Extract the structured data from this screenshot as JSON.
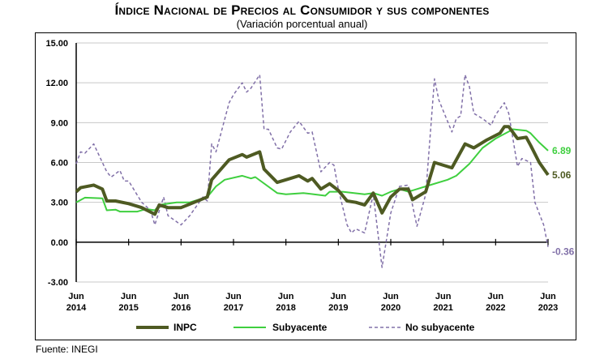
{
  "title": "Índice Nacional de Precios al Consumidor y sus componentes",
  "subtitle": "(Variación porcentual anual)",
  "source": "Fuente: INEGI",
  "chart_data": {
    "type": "line",
    "title": "Índice Nacional de Precios al Consumidor y sus componentes",
    "subtitle": "(Variación porcentual anual)",
    "ylim": [
      -3,
      15
    ],
    "yticks": [
      "15.00",
      "12.00",
      "9.00",
      "6.00",
      "3.00",
      "0.00",
      "-3.00"
    ],
    "ytick_values": [
      15,
      12,
      9,
      6,
      3,
      0,
      -3
    ],
    "xlim": [
      "2014-06",
      "2023-06"
    ],
    "xticks": [
      {
        "month": "Jun",
        "year": "2014",
        "x": "2014-06"
      },
      {
        "month": "Jun",
        "year": "2015",
        "x": "2015-06"
      },
      {
        "month": "Jun",
        "year": "2016",
        "x": "2016-06"
      },
      {
        "month": "Jun",
        "year": "2017",
        "x": "2017-06"
      },
      {
        "month": "Jun",
        "year": "2018",
        "x": "2018-06"
      },
      {
        "month": "Jun",
        "year": "2019",
        "x": "2019-06"
      },
      {
        "month": "Jun",
        "year": "2020",
        "x": "2020-06"
      },
      {
        "month": "Jun",
        "year": "2021",
        "x": "2021-06"
      },
      {
        "month": "Jun",
        "year": "2022",
        "x": "2022-06"
      },
      {
        "month": "Jun",
        "year": "2023",
        "x": "2023-06"
      }
    ],
    "grid": true,
    "legend_position": "bottom",
    "series": [
      {
        "name": "INPC",
        "color": "#4e5a22",
        "style": "solid-thick",
        "end_label": "5.06",
        "points": [
          [
            "2014-06",
            3.8
          ],
          [
            "2014-07",
            4.1
          ],
          [
            "2014-10",
            4.3
          ],
          [
            "2014-12",
            4.0
          ],
          [
            "2015-01",
            3.1
          ],
          [
            "2015-03",
            3.1
          ],
          [
            "2015-06",
            2.9
          ],
          [
            "2015-09",
            2.6
          ],
          [
            "2015-12",
            2.1
          ],
          [
            "2016-01",
            2.8
          ],
          [
            "2016-03",
            2.6
          ],
          [
            "2016-06",
            2.6
          ],
          [
            "2016-09",
            3.0
          ],
          [
            "2016-12",
            3.4
          ],
          [
            "2017-01",
            4.7
          ],
          [
            "2017-05",
            6.2
          ],
          [
            "2017-08",
            6.6
          ],
          [
            "2017-09",
            6.4
          ],
          [
            "2017-12",
            6.8
          ],
          [
            "2018-01",
            5.5
          ],
          [
            "2018-04",
            4.5
          ],
          [
            "2018-07",
            4.8
          ],
          [
            "2018-09",
            5.0
          ],
          [
            "2018-11",
            4.6
          ],
          [
            "2018-12",
            4.8
          ],
          [
            "2019-02",
            4.0
          ],
          [
            "2019-04",
            4.4
          ],
          [
            "2019-06",
            3.9
          ],
          [
            "2019-08",
            3.1
          ],
          [
            "2019-10",
            3.0
          ],
          [
            "2019-12",
            2.8
          ],
          [
            "2020-02",
            3.7
          ],
          [
            "2020-04",
            2.2
          ],
          [
            "2020-06",
            3.4
          ],
          [
            "2020-08",
            4.0
          ],
          [
            "2020-10",
            4.0
          ],
          [
            "2020-11",
            3.2
          ],
          [
            "2021-02",
            3.8
          ],
          [
            "2021-04",
            6.0
          ],
          [
            "2021-08",
            5.6
          ],
          [
            "2021-11",
            7.4
          ],
          [
            "2022-01",
            7.1
          ],
          [
            "2022-04",
            7.7
          ],
          [
            "2022-07",
            8.2
          ],
          [
            "2022-08",
            8.7
          ],
          [
            "2022-09",
            8.7
          ],
          [
            "2022-11",
            7.8
          ],
          [
            "2023-01",
            7.9
          ],
          [
            "2023-02",
            7.3
          ],
          [
            "2023-04",
            6.0
          ],
          [
            "2023-06",
            5.06
          ]
        ]
      },
      {
        "name": "Subyacente",
        "color": "#3fcf3f",
        "style": "solid",
        "end_label": "6.89",
        "points": [
          [
            "2014-06",
            3.0
          ],
          [
            "2014-08",
            3.35
          ],
          [
            "2014-12",
            3.3
          ],
          [
            "2015-01",
            2.4
          ],
          [
            "2015-03",
            2.45
          ],
          [
            "2015-04",
            2.3
          ],
          [
            "2015-08",
            2.3
          ],
          [
            "2015-10",
            2.5
          ],
          [
            "2015-12",
            2.4
          ],
          [
            "2016-01",
            2.8
          ],
          [
            "2016-05",
            3.0
          ],
          [
            "2016-08",
            3.0
          ],
          [
            "2016-12",
            3.4
          ],
          [
            "2017-02",
            4.2
          ],
          [
            "2017-04",
            4.7
          ],
          [
            "2017-08",
            5.0
          ],
          [
            "2017-10",
            4.8
          ],
          [
            "2017-11",
            4.9
          ],
          [
            "2018-04",
            3.7
          ],
          [
            "2018-06",
            3.6
          ],
          [
            "2018-10",
            3.7
          ],
          [
            "2019-03",
            3.5
          ],
          [
            "2019-04",
            3.8
          ],
          [
            "2019-07",
            3.8
          ],
          [
            "2019-12",
            3.6
          ],
          [
            "2020-02",
            3.7
          ],
          [
            "2020-04",
            3.5
          ],
          [
            "2020-06",
            3.8
          ],
          [
            "2020-08",
            4.0
          ],
          [
            "2020-10",
            3.8
          ],
          [
            "2021-02",
            4.2
          ],
          [
            "2021-07",
            4.7
          ],
          [
            "2021-09",
            5.0
          ],
          [
            "2021-12",
            5.9
          ],
          [
            "2022-03",
            7.1
          ],
          [
            "2022-06",
            7.8
          ],
          [
            "2022-10",
            8.5
          ],
          [
            "2023-01",
            8.4
          ],
          [
            "2023-02",
            8.2
          ],
          [
            "2023-04",
            7.5
          ],
          [
            "2023-06",
            6.89
          ]
        ]
      },
      {
        "name": "No subyacente",
        "color": "#8170a8",
        "style": "dashed",
        "end_label": "-0.36",
        "points": [
          [
            "2014-06",
            5.9
          ],
          [
            "2014-07",
            6.8
          ],
          [
            "2014-08",
            6.7
          ],
          [
            "2014-10",
            7.4
          ],
          [
            "2014-11",
            6.7
          ],
          [
            "2015-01",
            5.3
          ],
          [
            "2015-02",
            4.9
          ],
          [
            "2015-04",
            5.4
          ],
          [
            "2015-05",
            4.6
          ],
          [
            "2015-06",
            4.6
          ],
          [
            "2015-09",
            3.0
          ],
          [
            "2015-11",
            2.4
          ],
          [
            "2015-12",
            1.3
          ],
          [
            "2016-02",
            3.4
          ],
          [
            "2016-03",
            2.0
          ],
          [
            "2016-06",
            1.3
          ],
          [
            "2016-08",
            2.0
          ],
          [
            "2016-11",
            3.4
          ],
          [
            "2016-12",
            3.1
          ],
          [
            "2017-01",
            7.4
          ],
          [
            "2017-02",
            6.8
          ],
          [
            "2017-05",
            10.5
          ],
          [
            "2017-06",
            11.1
          ],
          [
            "2017-08",
            12.0
          ],
          [
            "2017-09",
            11.3
          ],
          [
            "2017-10",
            11.6
          ],
          [
            "2017-12",
            12.6
          ],
          [
            "2018-01",
            8.5
          ],
          [
            "2018-02",
            8.5
          ],
          [
            "2018-04",
            7.1
          ],
          [
            "2018-05",
            7.0
          ],
          [
            "2018-07",
            8.3
          ],
          [
            "2018-09",
            9.1
          ],
          [
            "2018-11",
            8.2
          ],
          [
            "2018-12",
            8.3
          ],
          [
            "2019-02",
            5.3
          ],
          [
            "2019-04",
            6.0
          ],
          [
            "2019-05",
            5.8
          ],
          [
            "2019-06",
            4.0
          ],
          [
            "2019-08",
            1.3
          ],
          [
            "2019-09",
            0.7
          ],
          [
            "2019-10",
            1.0
          ],
          [
            "2019-12",
            0.7
          ],
          [
            "2020-02",
            3.6
          ],
          [
            "2020-04",
            -1.9
          ],
          [
            "2020-06",
            2.2
          ],
          [
            "2020-08",
            4.2
          ],
          [
            "2020-10",
            4.3
          ],
          [
            "2020-12",
            1.2
          ],
          [
            "2021-02",
            3.6
          ],
          [
            "2021-04",
            12.3
          ],
          [
            "2021-05",
            10.7
          ],
          [
            "2021-08",
            8.3
          ],
          [
            "2021-09",
            9.3
          ],
          [
            "2021-10",
            9.5
          ],
          [
            "2021-11",
            12.6
          ],
          [
            "2021-12",
            11.7
          ],
          [
            "2022-01",
            9.7
          ],
          [
            "2022-03",
            9.3
          ],
          [
            "2022-05",
            8.8
          ],
          [
            "2022-06",
            9.6
          ],
          [
            "2022-08",
            10.5
          ],
          [
            "2022-09",
            9.7
          ],
          [
            "2022-11",
            5.7
          ],
          [
            "2022-12",
            6.3
          ],
          [
            "2023-02",
            6.0
          ],
          [
            "2023-03",
            3.0
          ],
          [
            "2023-05",
            1.3
          ],
          [
            "2023-06",
            -0.36
          ]
        ]
      }
    ]
  }
}
